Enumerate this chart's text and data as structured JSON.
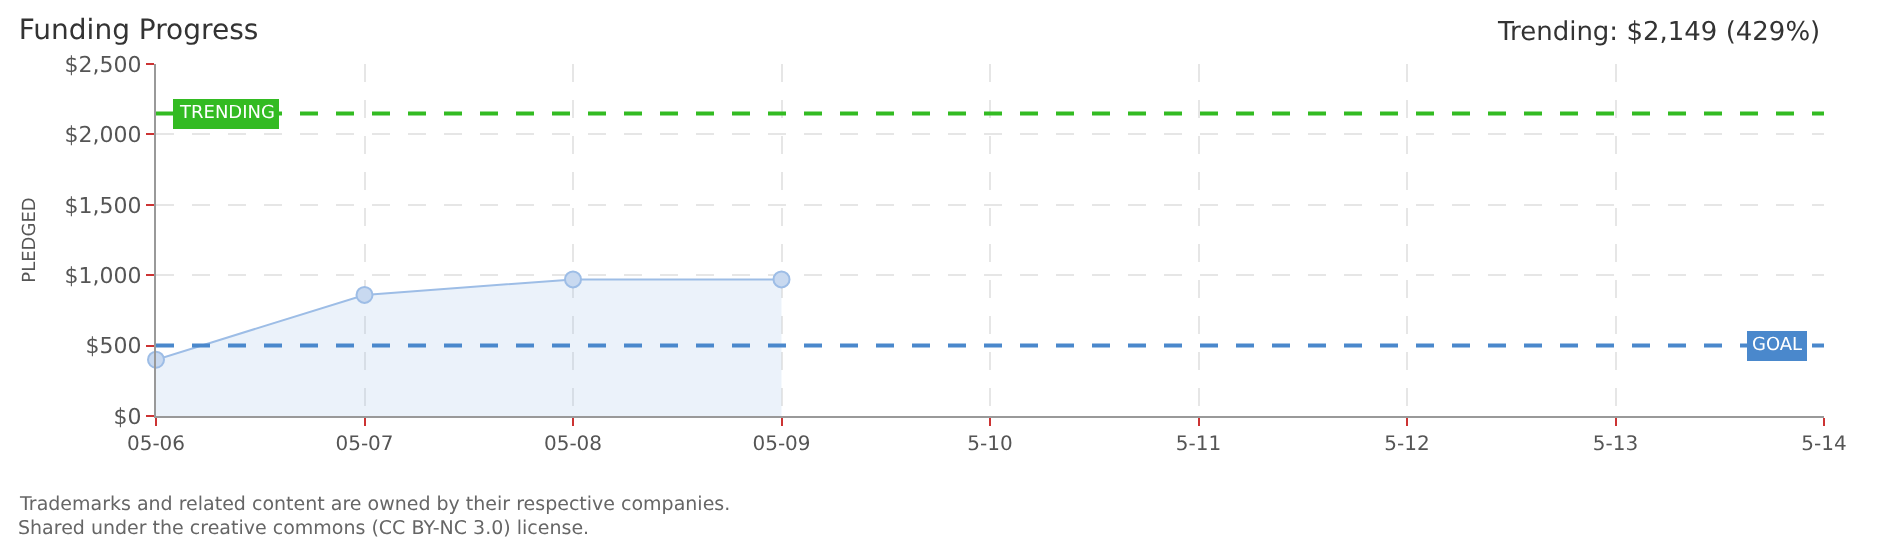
{
  "chart_data": {
    "type": "area",
    "title": "Funding Progress",
    "ylabel": "PLEDGED",
    "annotations": [
      "Trending: $2,149 (429%)",
      "Trademarks and related content are owned by their respective companies.",
      "Shared under the creative commons (CC BY-NC 3.0) license."
    ],
    "categories": [
      "05-06",
      "05-07",
      "05-08",
      "05-09",
      "5-10",
      "5-11",
      "5-12",
      "5-13",
      "5-14"
    ],
    "series": [
      {
        "color": "#9dbde6",
        "values": [
          400,
          860,
          970,
          970,
          null,
          null,
          null,
          null,
          null
        ]
      }
    ],
    "ylim": [
      0,
      2500
    ],
    "yticks": [
      {
        "value": 0,
        "label": "$0"
      },
      {
        "value": 500,
        "label": "$500"
      },
      {
        "value": 1000,
        "label": "$1,000"
      },
      {
        "value": 1500,
        "label": "$1,500"
      },
      {
        "value": 2000,
        "label": "$2,000"
      },
      {
        "value": 2500,
        "label": "$2,500"
      }
    ],
    "ref_lines": [
      {
        "axis": "y",
        "value": 2149,
        "label": "TRENDING",
        "color": "#33bb22",
        "line_style": "dashed"
      },
      {
        "axis": "y",
        "value": 500,
        "label": "GOAL",
        "color": "#4a88cc",
        "line_style": "dashed"
      }
    ],
    "grid": true,
    "marker": "circle"
  }
}
